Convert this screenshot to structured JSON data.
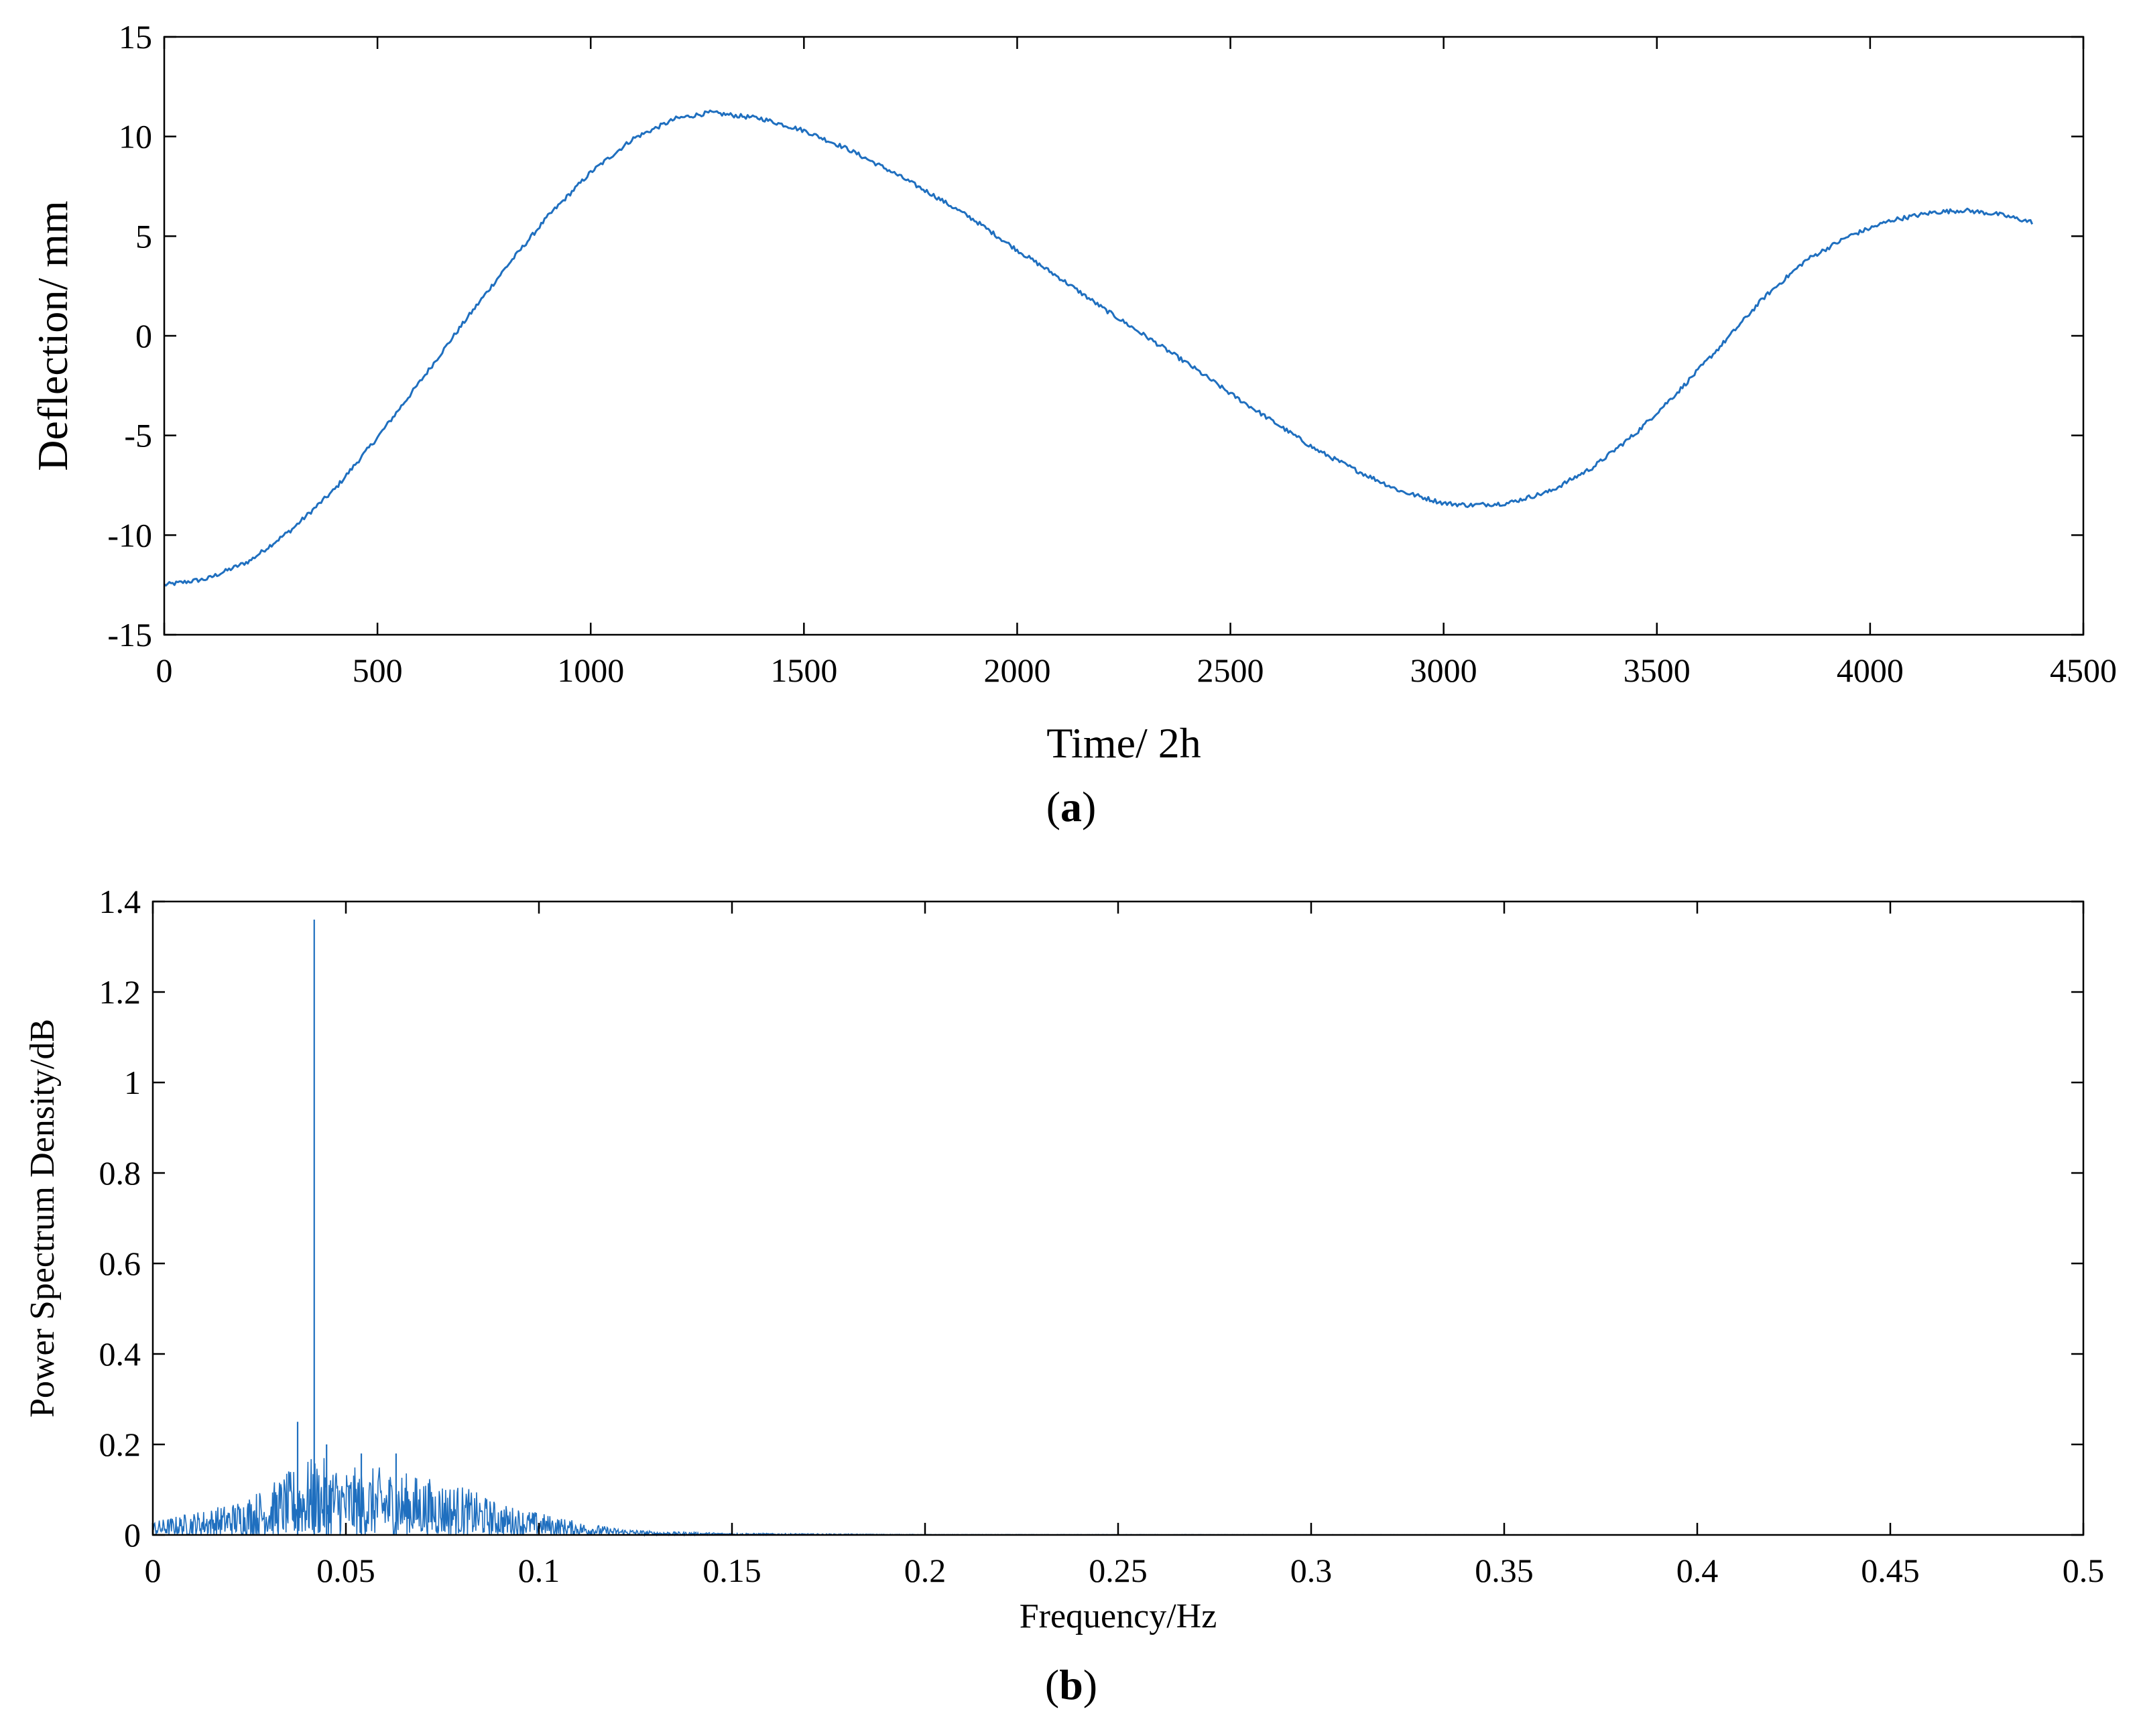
{
  "chart_data": [
    {
      "type": "line",
      "panel_caption": "(a)",
      "panel_letter": "a",
      "xlabel": "Time/ 2h",
      "ylabel": "Deflection/ mm",
      "xlim": [
        0,
        4500
      ],
      "ylim": [
        -15,
        15
      ],
      "xticks": [
        0,
        500,
        1000,
        1500,
        2000,
        2500,
        3000,
        3500,
        4000,
        4500
      ],
      "yticks": [
        -15,
        -10,
        -5,
        0,
        5,
        10,
        15
      ],
      "xtick_labels": [
        "0",
        "500",
        "1000",
        "1500",
        "2000",
        "2500",
        "3000",
        "3500",
        "4000",
        "4500"
      ],
      "ytick_labels": [
        "-15",
        "-10",
        "-5",
        "0",
        "5",
        "10",
        "15"
      ],
      "grid": false,
      "color": "#1f6fbf",
      "series": [
        {
          "x": [
            0,
            100,
            200,
            300,
            400,
            500,
            600,
            700,
            800,
            900,
            1000,
            1100,
            1200,
            1280,
            1400,
            1500,
            1600,
            1700,
            1800,
            1900,
            2000,
            2100,
            2200,
            2300,
            2400,
            2500,
            2600,
            2700,
            2800,
            2900,
            3000,
            3060,
            3150,
            3250,
            3350,
            3450,
            3550,
            3650,
            3750,
            3850,
            3950,
            4050,
            4150,
            4220,
            4300,
            4380
          ],
          "y": [
            -12.5,
            -12.2,
            -11.3,
            -9.7,
            -7.7,
            -5.1,
            -2.3,
            0.6,
            3.4,
            6.0,
            8.2,
            9.9,
            10.9,
            11.2,
            10.9,
            10.3,
            9.4,
            8.3,
            7.1,
            5.8,
            4.3,
            2.9,
            1.4,
            0.0,
            -1.4,
            -2.9,
            -4.3,
            -5.7,
            -6.8,
            -7.8,
            -8.4,
            -8.5,
            -8.4,
            -7.8,
            -6.6,
            -4.9,
            -2.8,
            -0.5,
            1.9,
            3.8,
            5.0,
            5.8,
            6.2,
            6.3,
            6.1,
            5.7
          ]
        }
      ]
    },
    {
      "type": "line",
      "panel_caption": "(b)",
      "panel_letter": "b",
      "xlabel": "Frequency/Hz",
      "ylabel": "Power Spectrum Density/dB",
      "xlim": [
        0,
        0.5
      ],
      "ylim": [
        0,
        1.4
      ],
      "xticks": [
        0,
        0.05,
        0.1,
        0.15,
        0.2,
        0.25,
        0.3,
        0.35,
        0.4,
        0.45,
        0.5
      ],
      "yticks": [
        0,
        0.2,
        0.4,
        0.6,
        0.8,
        1.0,
        1.2,
        1.4
      ],
      "xtick_labels": [
        "0",
        "0.05",
        "0.1",
        "0.15",
        "0.2",
        "0.25",
        "0.3",
        "0.35",
        "0.4",
        "0.45",
        "0.5"
      ],
      "ytick_labels": [
        "0",
        "0.2",
        "0.4",
        "0.6",
        "0.8",
        "1",
        "1.2",
        "1.4"
      ],
      "grid": false,
      "color": "#1f6fbf",
      "envelope": {
        "x": [
          0,
          0.01,
          0.02,
          0.03,
          0.035,
          0.04,
          0.045,
          0.05,
          0.055,
          0.06,
          0.065,
          0.07,
          0.075,
          0.08,
          0.09,
          0.1,
          0.11,
          0.12,
          0.13,
          0.15,
          0.2,
          0.3,
          0.5
        ],
        "y": [
          0.03,
          0.05,
          0.07,
          0.11,
          0.14,
          0.17,
          0.17,
          0.15,
          0.15,
          0.15,
          0.14,
          0.13,
          0.12,
          0.11,
          0.07,
          0.05,
          0.03,
          0.015,
          0.008,
          0.004,
          0.001,
          0.0005,
          0.0002
        ]
      },
      "peaks": [
        {
          "x": 0.0375,
          "y": 0.25
        },
        {
          "x": 0.0418,
          "y": 1.36
        },
        {
          "x": 0.045,
          "y": 0.2
        },
        {
          "x": 0.054,
          "y": 0.18
        },
        {
          "x": 0.063,
          "y": 0.18
        }
      ]
    }
  ]
}
